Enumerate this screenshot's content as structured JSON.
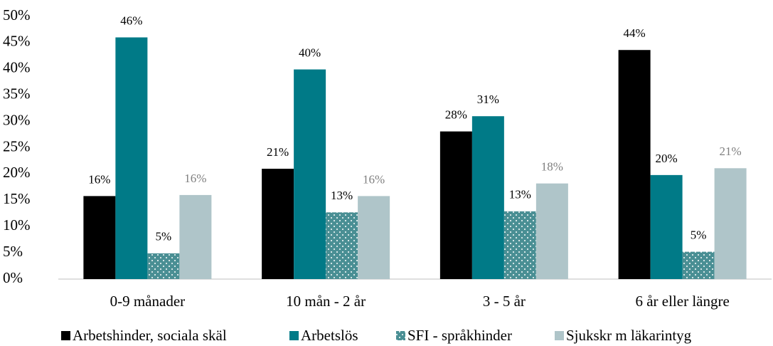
{
  "chart_data": {
    "type": "bar",
    "categories": [
      "0-9 månader",
      "10 mån - 2 år",
      "3 - 5 år",
      "6 år eller längre"
    ],
    "series": [
      {
        "name": "Arbetshinder, sociala skäl",
        "color": "#000000",
        "values": [
          15.8,
          21,
          28.1,
          43.6
        ],
        "value_labels": [
          "16%",
          "21%",
          "28%",
          "44%"
        ]
      },
      {
        "name": "Arbetslös",
        "color": "#007a87",
        "values": [
          46,
          39.9,
          31,
          19.8
        ],
        "value_labels": [
          "46%",
          "40%",
          "31%",
          "20%"
        ]
      },
      {
        "name": "SFI - språkhinder",
        "color": "#4a8f94",
        "pattern": "dotted",
        "values": [
          4.9,
          12.7,
          12.9,
          5.2
        ],
        "value_labels": [
          "5%",
          "13%",
          "13%",
          "5%"
        ]
      },
      {
        "name": "Sjukskr m läkarintyg",
        "color": "#afc5c9",
        "values": [
          16,
          15.8,
          18.2,
          21.1
        ],
        "value_labels": [
          "16%",
          "16%",
          "18%",
          "21%"
        ]
      }
    ],
    "ylim": [
      0,
      50
    ],
    "yticks": [
      {
        "value": 0,
        "label": "0%"
      },
      {
        "value": 5,
        "label": "5%"
      },
      {
        "value": 10,
        "label": "10%"
      },
      {
        "value": 15,
        "label": "15%"
      },
      {
        "value": 20,
        "label": "20%"
      },
      {
        "value": 25,
        "label": "25%"
      },
      {
        "value": 30,
        "label": "30%"
      },
      {
        "value": 35,
        "label": "35%"
      },
      {
        "value": 40,
        "label": "40%"
      },
      {
        "value": 45,
        "label": "45%"
      },
      {
        "value": 50,
        "label": "50%"
      }
    ],
    "legend": "bottom"
  }
}
